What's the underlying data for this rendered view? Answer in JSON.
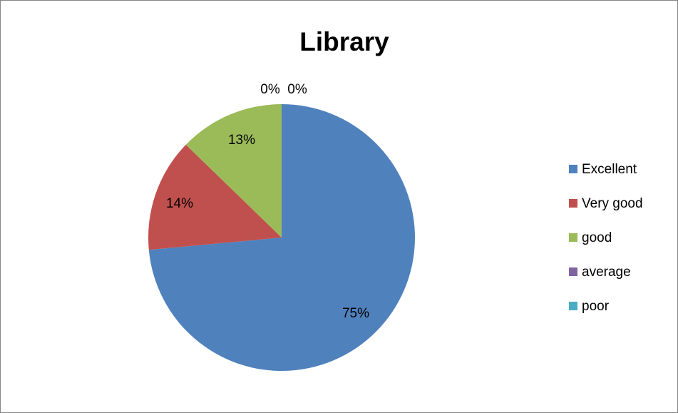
{
  "chart_data": {
    "type": "pie",
    "title": "Library",
    "categories": [
      "Excellent",
      "Very good",
      "good",
      "average",
      "poor"
    ],
    "values": [
      75,
      14,
      13,
      0,
      0
    ],
    "labels": [
      "75%",
      "14%",
      "13%",
      "0%",
      "0%"
    ],
    "colors": [
      "#4f81bd",
      "#c0504d",
      "#9bbb59",
      "#8064a2",
      "#4bacc6"
    ],
    "legend": "right"
  }
}
